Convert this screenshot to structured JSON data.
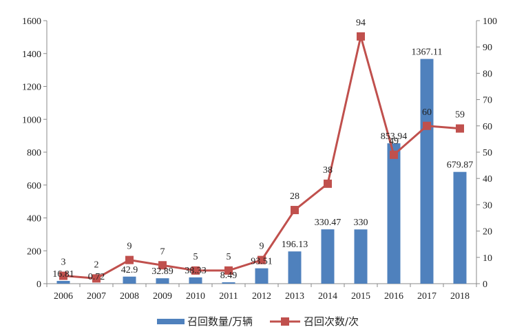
{
  "chart_data": {
    "type": "bar+line",
    "categories": [
      "2006",
      "2007",
      "2008",
      "2009",
      "2010",
      "2011",
      "2012",
      "2013",
      "2014",
      "2015",
      "2016",
      "2017",
      "2018"
    ],
    "series": [
      {
        "name": "召回数量/万辆",
        "type": "bar",
        "axis": "left",
        "values": [
          16.81,
          0.72,
          42.9,
          32.89,
          38.33,
          8.49,
          93.51,
          196.13,
          330.47,
          330,
          853.94,
          1367.11,
          679.87
        ],
        "labels": [
          "16.81",
          "0.72",
          "42.9",
          "32.89",
          "38.33",
          "8.49",
          "93.51",
          "196.13",
          "330.47",
          "330",
          "853.94",
          "1367.11",
          "679.87"
        ],
        "color": "#4F81BD"
      },
      {
        "name": "召回次数/次",
        "type": "line",
        "axis": "right",
        "values": [
          3,
          2,
          9,
          7,
          5,
          5,
          9,
          28,
          38,
          94,
          49,
          60,
          59
        ],
        "labels": [
          "3",
          "2",
          "9",
          "7",
          "5",
          "5",
          "9",
          "28",
          "38",
          "94",
          "49",
          "60",
          "59"
        ],
        "color": "#C0504D"
      }
    ],
    "y_left": {
      "min": 0,
      "max": 1600,
      "ticks": [
        "0",
        "200",
        "400",
        "600",
        "800",
        "1000",
        "1200",
        "1400",
        "1600"
      ]
    },
    "y_right": {
      "min": 0,
      "max": 100,
      "ticks": [
        "0",
        "10",
        "20",
        "30",
        "40",
        "50",
        "60",
        "70",
        "80",
        "90",
        "100"
      ]
    },
    "legend_position": "bottom",
    "grid": false
  }
}
